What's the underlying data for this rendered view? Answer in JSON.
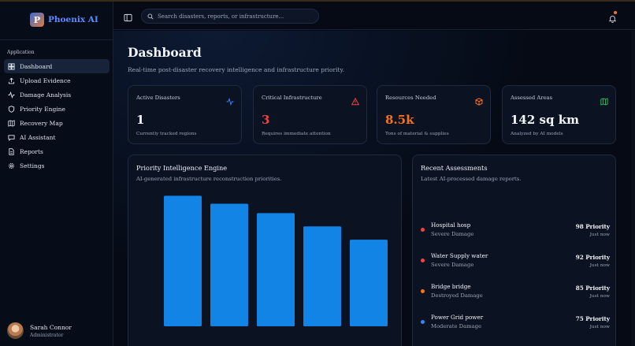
{
  "brand": {
    "logo_letter": "P",
    "name": "Phoenix AI"
  },
  "sidebar": {
    "section_title": "Application",
    "items": [
      {
        "label": "Dashboard",
        "icon": "grid-icon",
        "active": true
      },
      {
        "label": "Upload Evidence",
        "icon": "upload-icon"
      },
      {
        "label": "Damage Analysis",
        "icon": "activity-icon"
      },
      {
        "label": "Priority Engine",
        "icon": "shield-icon"
      },
      {
        "label": "Recovery Map",
        "icon": "map-icon"
      },
      {
        "label": "AI Assistant",
        "icon": "chat-icon"
      },
      {
        "label": "Reports",
        "icon": "file-icon"
      },
      {
        "label": "Settings",
        "icon": "gear-icon"
      }
    ]
  },
  "user": {
    "name": "Sarah Connor",
    "role": "Administrator"
  },
  "header": {
    "search_placeholder": "Search disasters, reports, or infrastructure..."
  },
  "page": {
    "title": "Dashboard",
    "subtitle": "Real-time post-disaster recovery intelligence and infrastructure priority."
  },
  "stats": [
    {
      "label": "Active Disasters",
      "value": "1",
      "caption": "Currently tracked regions",
      "icon": "activity-icon",
      "value_color": "#f2f5fa",
      "icon_color": "#3b82f6"
    },
    {
      "label": "Critical Infrastructure",
      "value": "3",
      "caption": "Requires immediate attention",
      "icon": "alert-triangle-icon",
      "value_color": "#ef4444",
      "icon_color": "#ef4444"
    },
    {
      "label": "Resources Needed",
      "value": "8.5k",
      "caption": "Tons of material & supplies",
      "icon": "box-icon",
      "value_color": "#f97316",
      "icon_color": "#f97316"
    },
    {
      "label": "Assessed Areas",
      "value": "142 sq km",
      "caption": "Analyzed by AI models",
      "icon": "map-icon",
      "value_color": "#f2f5fa",
      "icon_color": "#22c55e"
    }
  ],
  "priority_panel": {
    "title": "Priority Intelligence Engine",
    "subtitle": "AI-generated infrastructure reconstruction priorities."
  },
  "chart_data": {
    "type": "bar",
    "categories": [
      "",
      "",
      "",
      "",
      ""
    ],
    "values": [
      98,
      92,
      85,
      75,
      65
    ],
    "ylim": [
      0,
      100
    ],
    "bar_color": "#1284e6",
    "grid": false
  },
  "assessments_panel": {
    "title": "Recent Assessments",
    "subtitle": "Latest AI-processed damage reports.",
    "items": [
      {
        "name": "Hospital hosp",
        "damage": "Severe Damage",
        "priority": "98 Priority",
        "time": "Just now",
        "color": "#ef4444"
      },
      {
        "name": "Water Supply water",
        "damage": "Severe Damage",
        "priority": "92 Priority",
        "time": "Just now",
        "color": "#ef4444"
      },
      {
        "name": "Bridge bridge",
        "damage": "Destroyed Damage",
        "priority": "85 Priority",
        "time": "Just now",
        "color": "#f97316"
      },
      {
        "name": "Power Grid power",
        "damage": "Moderate Damage",
        "priority": "75 Priority",
        "time": "Just now",
        "color": "#3b82f6"
      }
    ]
  }
}
